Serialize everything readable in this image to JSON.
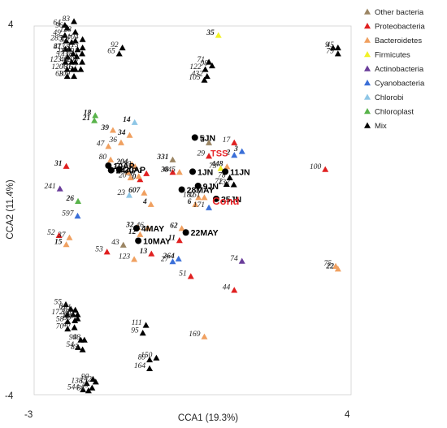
{
  "chart_data": {
    "type": "scatter",
    "title": "",
    "xlabel": "CCA1 (19.3%)",
    "ylabel": "CCA2 (11.4%)",
    "xlim": [
      -3,
      4
    ],
    "ylim": [
      -4,
      4
    ],
    "x_ticks": [
      "-3",
      "4"
    ],
    "y_ticks": [
      "4",
      "-4"
    ],
    "grid": false,
    "legend_position": "top-right",
    "legend": [
      {
        "key": "other",
        "name": "Other bacteria",
        "color": "#9b8563"
      },
      {
        "key": "proteo",
        "name": "Proteobacteria",
        "color": "#e02020"
      },
      {
        "key": "bacteroid",
        "name": "Bacteroidetes",
        "color": "#f0a060"
      },
      {
        "key": "firmi",
        "name": "Firmicutes",
        "color": "#f2f227"
      },
      {
        "key": "actino",
        "name": "Actinobacteria",
        "color": "#6a3d9a"
      },
      {
        "key": "cyano",
        "name": "Cyanobacteria",
        "color": "#3a6fd8"
      },
      {
        "key": "chlorobi",
        "name": "Chlorobi",
        "color": "#8ec6e6"
      },
      {
        "key": "chloroplast",
        "name": "Chloroplast",
        "color": "#58b34a"
      },
      {
        "key": "mix",
        "name": "Mix",
        "color": "#000000"
      }
    ],
    "series": [
      {
        "key": "other",
        "points": [
          {
            "x": 0.86,
            "y": 1.46,
            "label": "5",
            "bold": true
          },
          {
            "x": 0.06,
            "y": 1.09,
            "label": "331",
            "bold": true
          },
          {
            "x": -1.03,
            "y": -0.76,
            "label": "43",
            "bold": false
          }
        ]
      },
      {
        "key": "proteo",
        "points": [
          {
            "x": 1.42,
            "y": 1.46,
            "label": "17",
            "bold": false
          },
          {
            "x": 0.86,
            "y": 1.17,
            "label": "29",
            "bold": false
          },
          {
            "x": 3.43,
            "y": 0.88,
            "label": "100",
            "bold": false
          },
          {
            "x": -2.29,
            "y": 0.95,
            "label": "31",
            "bold": true
          },
          {
            "x": 0.06,
            "y": 0.82,
            "label": "38",
            "bold": true
          },
          {
            "x": -0.52,
            "y": 0.79,
            "label": "1",
            "bold": true
          },
          {
            "x": -0.66,
            "y": 0.66,
            "label": "10",
            "bold": true
          },
          {
            "x": -2.45,
            "y": -0.55,
            "label": "52",
            "bold": false
          },
          {
            "x": -1.39,
            "y": -0.91,
            "label": "53",
            "bold": false
          },
          {
            "x": 0.21,
            "y": -0.66,
            "label": "11",
            "bold": true
          },
          {
            "x": -0.41,
            "y": -0.95,
            "label": "13",
            "bold": true
          },
          {
            "x": 0.46,
            "y": -1.44,
            "label": "51",
            "bold": false
          },
          {
            "x": 1.42,
            "y": -1.74,
            "label": "44",
            "bold": false
          }
        ]
      },
      {
        "key": "bacteroid",
        "points": [
          {
            "x": -2.22,
            "y": -0.6,
            "label": "37",
            "bold": false
          },
          {
            "x": -2.29,
            "y": -0.75,
            "label": "15",
            "bold": true
          },
          {
            "x": -1.26,
            "y": 1.73,
            "label": "39",
            "bold": true
          },
          {
            "x": -0.89,
            "y": 1.62,
            "label": "34",
            "bold": true
          },
          {
            "x": -1.08,
            "y": 1.46,
            "label": "36",
            "bold": false
          },
          {
            "x": -1.36,
            "y": 1.38,
            "label": "47",
            "bold": false
          },
          {
            "x": -1.31,
            "y": 1.09,
            "label": "80",
            "bold": false
          },
          {
            "x": -0.84,
            "y": 0.99,
            "label": "204",
            "bold": true
          },
          {
            "x": -0.77,
            "y": 0.94,
            "label": "50",
            "bold": false
          },
          {
            "x": -0.69,
            "y": 0.73,
            "label": "60",
            "bold": false
          },
          {
            "x": -0.93,
            "y": 0.82,
            "label": "125",
            "bold": false
          },
          {
            "x": -0.87,
            "y": 0.7,
            "label": "20",
            "bold": false
          },
          {
            "x": 0.21,
            "y": 0.82,
            "label": "645",
            "bold": false
          },
          {
            "x": 1.26,
            "y": 0.94,
            "label": "448",
            "bold": true
          },
          {
            "x": -0.57,
            "y": 0.37,
            "label": "607",
            "bold": true
          },
          {
            "x": -0.42,
            "y": 0.12,
            "label": "4",
            "bold": true
          },
          {
            "x": 0.63,
            "y": 0.27,
            "label": "182",
            "bold": false
          },
          {
            "x": 0.76,
            "y": 0.27,
            "label": "161",
            "bold": false
          },
          {
            "x": 0.56,
            "y": 0.12,
            "label": "6",
            "bold": true
          },
          {
            "x": -0.49,
            "y": -0.39,
            "label": "46",
            "bold": false
          },
          {
            "x": -0.66,
            "y": -0.53,
            "label": "12",
            "bold": true
          },
          {
            "x": -0.71,
            "y": -0.38,
            "label": "32",
            "bold": true
          },
          {
            "x": 0.26,
            "y": -0.4,
            "label": "62",
            "bold": true
          },
          {
            "x": -0.79,
            "y": -1.07,
            "label": "123",
            "bold": false
          },
          {
            "x": 3.66,
            "y": -1.22,
            "label": "75",
            "bold": false
          },
          {
            "x": 3.71,
            "y": -1.28,
            "label": "22",
            "bold": true
          },
          {
            "x": 0.76,
            "y": -2.75,
            "label": "169",
            "bold": false
          }
        ]
      },
      {
        "key": "firmi",
        "points": [
          {
            "x": 1.07,
            "y": 3.79,
            "label": "35",
            "bold": true
          },
          {
            "x": 1.12,
            "y": 0.9,
            "label": "73",
            "bold": false
          }
        ]
      },
      {
        "key": "actino",
        "points": [
          {
            "x": -2.43,
            "y": 0.46,
            "label": "241",
            "bold": false
          },
          {
            "x": 1.59,
            "y": -1.11,
            "label": "74",
            "bold": false
          }
        ]
      },
      {
        "key": "cyano",
        "points": [
          {
            "x": 1.42,
            "y": 1.19,
            "label": "2",
            "bold": true
          },
          {
            "x": 1.59,
            "y": 1.27,
            "label": "3",
            "bold": true
          },
          {
            "x": -2.04,
            "y": -0.13,
            "label": "597",
            "bold": false
          },
          {
            "x": 0.86,
            "y": 0.05,
            "label": "171",
            "bold": false
          },
          {
            "x": 0.19,
            "y": -1.06,
            "label": "264",
            "bold": true
          },
          {
            "x": 0.06,
            "y": -1.12,
            "label": "27",
            "bold": false
          }
        ]
      },
      {
        "key": "chlorobi",
        "points": [
          {
            "x": -0.78,
            "y": 1.9,
            "label": "14",
            "bold": true
          },
          {
            "x": -0.9,
            "y": 0.32,
            "label": "23",
            "bold": false
          }
        ]
      },
      {
        "key": "chloroplast",
        "points": [
          {
            "x": -1.65,
            "y": 2.05,
            "label": "18",
            "bold": true
          },
          {
            "x": -1.67,
            "y": 1.94,
            "label": "21",
            "bold": true
          },
          {
            "x": -2.03,
            "y": 0.19,
            "label": "26",
            "bold": true
          }
        ]
      },
      {
        "key": "mix",
        "points": [
          {
            "x": -2.32,
            "y": 4.01,
            "label": "64",
            "bold": false
          },
          {
            "x": -2.27,
            "y": 3.95,
            "label": "96",
            "bold": false
          },
          {
            "x": -2.12,
            "y": 4.09,
            "label": "83",
            "bold": false
          },
          {
            "x": -2.32,
            "y": 3.79,
            "label": "49",
            "bold": false
          },
          {
            "x": -2.09,
            "y": 3.86,
            "label": "128",
            "bold": false
          },
          {
            "x": -2.29,
            "y": 3.67,
            "label": "285",
            "bold": false
          },
          {
            "x": -2.17,
            "y": 3.64,
            "label": "33",
            "bold": true
          },
          {
            "x": -2.09,
            "y": 3.67,
            "label": "137",
            "bold": false
          },
          {
            "x": -1.93,
            "y": 3.7,
            "label": "104",
            "bold": false
          },
          {
            "x": -2.31,
            "y": 3.49,
            "label": "41",
            "bold": false
          },
          {
            "x": -2.23,
            "y": 3.49,
            "label": "873",
            "bold": false
          },
          {
            "x": -2.04,
            "y": 3.48,
            "label": "87",
            "bold": false
          },
          {
            "x": -1.93,
            "y": 3.52,
            "label": "115",
            "bold": false
          },
          {
            "x": -2.26,
            "y": 3.32,
            "label": "57",
            "bold": false
          },
          {
            "x": -2.14,
            "y": 3.39,
            "label": "191",
            "bold": false
          },
          {
            "x": -2.06,
            "y": 3.33,
            "label": "118",
            "bold": false
          },
          {
            "x": -1.94,
            "y": 3.39,
            "label": "191",
            "bold": false
          },
          {
            "x": -2.31,
            "y": 3.21,
            "label": "123",
            "bold": false
          },
          {
            "x": -2.17,
            "y": 3.21,
            "label": "42",
            "bold": false
          },
          {
            "x": -2.09,
            "y": 3.21,
            "label": "66",
            "bold": false
          },
          {
            "x": -1.94,
            "y": 3.21,
            "label": "208",
            "bold": false
          },
          {
            "x": -2.27,
            "y": 3.05,
            "label": "120",
            "bold": false
          },
          {
            "x": -2.15,
            "y": 3.05,
            "label": "77",
            "bold": false
          },
          {
            "x": -2.09,
            "y": 3.05,
            "label": "81",
            "bold": false
          },
          {
            "x": -1.97,
            "y": 3.05,
            "label": "67",
            "bold": false
          },
          {
            "x": -2.27,
            "y": 2.9,
            "label": "63",
            "bold": false
          },
          {
            "x": -2.12,
            "y": 2.9,
            "label": "109",
            "bold": false
          },
          {
            "x": -1.05,
            "y": 3.52,
            "label": "92",
            "bold": false
          },
          {
            "x": -1.12,
            "y": 3.39,
            "label": "65",
            "bold": false
          },
          {
            "x": 0.86,
            "y": 3.21,
            "label": "71",
            "bold": false
          },
          {
            "x": 0.93,
            "y": 3.13,
            "label": "98",
            "bold": false
          },
          {
            "x": 0.78,
            "y": 3.05,
            "label": "122",
            "bold": false
          },
          {
            "x": 0.82,
            "y": 2.9,
            "label": "432",
            "bold": false
          },
          {
            "x": 0.76,
            "y": 2.82,
            "label": "105",
            "bold": false
          },
          {
            "x": 3.6,
            "y": 3.52,
            "label": "9",
            "bold": false
          },
          {
            "x": 3.71,
            "y": 3.52,
            "label": "45",
            "bold": false
          },
          {
            "x": 3.71,
            "y": 3.39,
            "label": "79",
            "bold": false
          },
          {
            "x": 1.32,
            "y": 0.7,
            "label": "78",
            "bold": false
          },
          {
            "x": 1.25,
            "y": 0.56,
            "label": "72",
            "bold": false
          },
          {
            "x": 1.41,
            "y": 0.55,
            "label": "132",
            "bold": false
          },
          {
            "x": -2.3,
            "y": -2.05,
            "label": "55",
            "bold": false
          },
          {
            "x": -2.19,
            "y": -2.15,
            "label": "61",
            "bold": false
          },
          {
            "x": -2.09,
            "y": -2.17,
            "label": "131",
            "bold": false
          },
          {
            "x": -2.27,
            "y": -2.27,
            "label": "172",
            "bold": false
          },
          {
            "x": -2.14,
            "y": -2.27,
            "label": "30",
            "bold": false
          },
          {
            "x": -2.04,
            "y": -2.27,
            "label": "156",
            "bold": false
          },
          {
            "x": -2.26,
            "y": -2.42,
            "label": "58",
            "bold": false
          },
          {
            "x": -2.1,
            "y": -2.4,
            "label": "56",
            "bold": false
          },
          {
            "x": -2.04,
            "y": -2.36,
            "label": "129",
            "bold": false
          },
          {
            "x": -2.26,
            "y": -2.58,
            "label": "70",
            "bold": false
          },
          {
            "x": -2.11,
            "y": -2.55,
            "label": "40",
            "bold": false
          },
          {
            "x": -1.89,
            "y": -2.82,
            "label": "48",
            "bold": false
          },
          {
            "x": -1.97,
            "y": -2.82,
            "label": "99",
            "bold": false
          },
          {
            "x": -2.03,
            "y": -2.98,
            "label": "54",
            "bold": false
          },
          {
            "x": -1.93,
            "y": -3.03,
            "label": "85",
            "bold": false
          },
          {
            "x": -0.53,
            "y": -2.5,
            "label": "111",
            "bold": false
          },
          {
            "x": -0.6,
            "y": -2.67,
            "label": "95",
            "bold": false
          },
          {
            "x": -0.3,
            "y": -3.21,
            "label": "150",
            "bold": false
          },
          {
            "x": -0.45,
            "y": -3.25,
            "label": "89",
            "bold": false
          },
          {
            "x": -0.45,
            "y": -3.44,
            "label": "164",
            "bold": false
          },
          {
            "x": -1.7,
            "y": -3.67,
            "label": "90",
            "bold": false
          },
          {
            "x": -1.64,
            "y": -3.73,
            "label": "142",
            "bold": false
          },
          {
            "x": -1.84,
            "y": -3.76,
            "label": "138",
            "bold": false
          },
          {
            "x": -1.72,
            "y": -3.86,
            "label": "76",
            "bold": false
          },
          {
            "x": -1.92,
            "y": -3.9,
            "label": "544",
            "bold": false
          },
          {
            "x": -1.8,
            "y": -3.92,
            "label": "84",
            "bold": false
          }
        ]
      }
    ],
    "samples": [
      {
        "x": 0.55,
        "y": 1.58,
        "label": "5JN"
      },
      {
        "x": -1.36,
        "y": 0.97,
        "label": "10AP"
      },
      {
        "x": -1.12,
        "y": 0.89,
        "label": "20AP"
      },
      {
        "x": -1.3,
        "y": 0.87,
        "label": "24AP"
      },
      {
        "x": 0.5,
        "y": 0.84,
        "label": "1JN"
      },
      {
        "x": 1.22,
        "y": 0.84,
        "label": "11JN"
      },
      {
        "x": 0.26,
        "y": 0.45,
        "label": "28MAY"
      },
      {
        "x": 0.62,
        "y": 0.53,
        "label": "9JN"
      },
      {
        "x": 1.02,
        "y": 0.25,
        "label": "25JN"
      },
      {
        "x": -0.74,
        "y": -0.39,
        "label": "4MAY"
      },
      {
        "x": -0.7,
        "y": -0.66,
        "label": "10MAY"
      },
      {
        "x": 0.35,
        "y": -0.48,
        "label": "22MAY"
      }
    ],
    "vectors": [
      {
        "x": 0.86,
        "y": 1.19,
        "label": "TSS",
        "size": 11
      },
      {
        "x": 0.9,
        "y": 0.14,
        "label": "Cond",
        "size": 13
      }
    ]
  }
}
